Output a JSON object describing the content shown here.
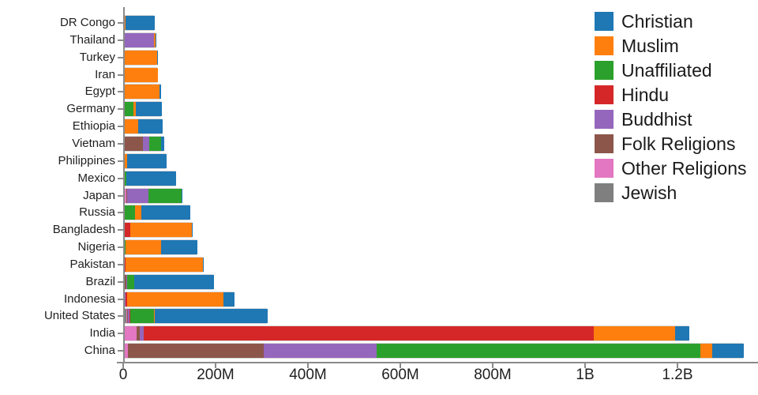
{
  "chart_data": {
    "type": "bar",
    "orientation": "horizontal",
    "stacked": true,
    "title": "",
    "xlabel": "",
    "ylabel": "",
    "unit": "people (millions)",
    "grid": false,
    "legend_position": "upper right, outside plot",
    "xlim_millions": [
      0,
      1374
    ],
    "x_ticks": [
      {
        "label": "0",
        "value_millions": 0
      },
      {
        "label": "200M",
        "value_millions": 200
      },
      {
        "label": "400M",
        "value_millions": 400
      },
      {
        "label": "600M",
        "value_millions": 600
      },
      {
        "label": "800M",
        "value_millions": 800
      },
      {
        "label": "1B",
        "value_millions": 1000
      },
      {
        "label": "1.2B",
        "value_millions": 1200
      }
    ],
    "legend": [
      {
        "label": "Christian",
        "color": "#1f77b4"
      },
      {
        "label": "Muslim",
        "color": "#ff7f0e"
      },
      {
        "label": "Unaffiliated",
        "color": "#2ca02c"
      },
      {
        "label": "Hindu",
        "color": "#d62728"
      },
      {
        "label": "Buddhist",
        "color": "#9467bd"
      },
      {
        "label": "Folk Religions",
        "color": "#8c564b"
      },
      {
        "label": "Other Religions",
        "color": "#e377c2"
      },
      {
        "label": "Jewish",
        "color": "#7f7f7f"
      }
    ],
    "stack_order_left_to_right": [
      "Jewish",
      "Other Religions",
      "Folk Religions",
      "Buddhist",
      "Hindu",
      "Unaffiliated",
      "Muslim",
      "Christian"
    ],
    "categories_top_to_bottom": [
      "DR Congo",
      "Thailand",
      "Turkey",
      "Iran",
      "Egypt",
      "Germany",
      "Ethiopia",
      "Vietnam",
      "Philippines",
      "Mexico",
      "Japan",
      "Russia",
      "Bangladesh",
      "Nigeria",
      "Pakistan",
      "Brazil",
      "Indonesia",
      "United States",
      "India",
      "China"
    ],
    "series_values_millions": [
      {
        "name": "DR Congo",
        "values": {
          "Folk Religions": 1.2,
          "Unaffiliated": 0.5,
          "Muslim": 1.0,
          "Christian": 63.2
        }
      },
      {
        "name": "Thailand",
        "values": {
          "Folk Religions": 0.2,
          "Buddhist": 64.4,
          "Unaffiliated": 0.2,
          "Muslim": 3.8,
          "Christian": 0.6
        }
      },
      {
        "name": "Turkey",
        "values": {
          "Unaffiliated": 0.9,
          "Muslim": 71.3,
          "Christian": 0.3
        }
      },
      {
        "name": "Iran",
        "values": {
          "Other Religions": 0.2,
          "Muslim": 73.6,
          "Christian": 0.1
        }
      },
      {
        "name": "Egypt",
        "values": {
          "Muslim": 77.0,
          "Christian": 4.1
        }
      },
      {
        "name": "Germany",
        "values": {
          "Jewish": 0.23,
          "Buddhist": 0.25,
          "Unaffiliated": 20.4,
          "Muslim": 4.8,
          "Christian": 56.5
        }
      },
      {
        "name": "Ethiopia",
        "values": {
          "Folk Religions": 2.2,
          "Muslim": 28.7,
          "Christian": 52.1
        }
      },
      {
        "name": "Vietnam",
        "values": {
          "Other Religions": 0.4,
          "Folk Religions": 39.8,
          "Buddhist": 14.4,
          "Unaffiliated": 26.0,
          "Christian": 7.2
        }
      },
      {
        "name": "Philippines",
        "values": {
          "Folk Religions": 1.4,
          "Unaffiliated": 0.1,
          "Muslim": 5.1,
          "Christian": 86.4
        }
      },
      {
        "name": "Mexico",
        "values": {
          "Unaffiliated": 5.3,
          "Christian": 107.8
        }
      },
      {
        "name": "Japan",
        "values": {
          "Other Religions": 5.9,
          "Folk Religions": 0.5,
          "Buddhist": 45.8,
          "Unaffiliated": 72.1,
          "Muslim": 0.2,
          "Christian": 2.0
        }
      },
      {
        "name": "Russia",
        "values": {
          "Jewish": 0.3,
          "Folk Religions": 0.26,
          "Unaffiliated": 23.2,
          "Muslim": 14.3,
          "Christian": 104.8
        }
      },
      {
        "name": "Bangladesh",
        "values": {
          "Buddhist": 0.7,
          "Hindu": 13.5,
          "Muslim": 133.5,
          "Christian": 0.5
        }
      },
      {
        "name": "Nigeria",
        "values": {
          "Folk Religions": 2.2,
          "Unaffiliated": 0.7,
          "Muslim": 77.3,
          "Christian": 78.1
        }
      },
      {
        "name": "Pakistan",
        "values": {
          "Hindu": 3.3,
          "Muslim": 167.4,
          "Christian": 2.8
        }
      },
      {
        "name": "Brazil",
        "values": {
          "Jewish": 0.11,
          "Other Religions": 0.3,
          "Folk Religions": 5.5,
          "Buddhist": 0.25,
          "Unaffiliated": 15.4,
          "Christian": 173.3
        }
      },
      {
        "name": "Indonesia",
        "values": {
          "Other Religions": 0.3,
          "Folk Religions": 0.7,
          "Buddhist": 1.7,
          "Hindu": 4.1,
          "Unaffiliated": 0.2,
          "Muslim": 209.1,
          "Christian": 23.7
        }
      },
      {
        "name": "United States",
        "values": {
          "Jewish": 5.7,
          "Other Religions": 1.9,
          "Folk Religions": 0.6,
          "Buddhist": 3.6,
          "Hindu": 1.8,
          "Unaffiliated": 51.0,
          "Muslim": 2.8,
          "Christian": 243.1
        }
      },
      {
        "name": "India",
        "values": {
          "Other Religions": 27.6,
          "Folk Religions": 5.8,
          "Buddhist": 9.3,
          "Hindu": 973.8,
          "Unaffiliated": 0.9,
          "Muslim": 176.2,
          "Christian": 31.1
        }
      },
      {
        "name": "China",
        "values": {
          "Other Religions": 9.1,
          "Folk Religions": 294.3,
          "Buddhist": 244.1,
          "Unaffiliated": 700.7,
          "Muslim": 24.7,
          "Christian": 68.4
        }
      }
    ]
  },
  "style": {
    "axis_color": "#8a8a8a",
    "label_color": "#1f1f1f",
    "background": "#ffffff",
    "bar_edge_color": "#d9d9d9"
  }
}
